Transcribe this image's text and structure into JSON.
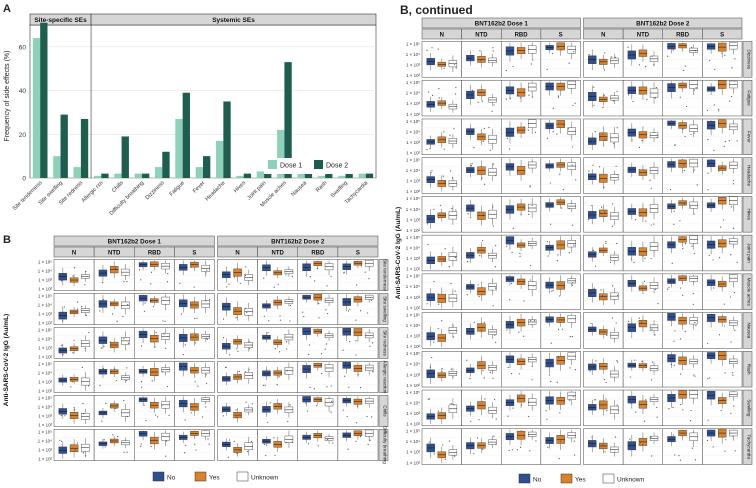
{
  "panels": {
    "a_letter": "A",
    "b_letter": "B",
    "b_continued_title": "B, continued"
  },
  "chart_data": [
    {
      "id": "A",
      "type": "bar",
      "ylabel": "Frequency of side effects (%)",
      "ylim": [
        0,
        75
      ],
      "yticks": [
        0,
        20,
        40,
        60
      ],
      "grid": true,
      "legend_position": "bottom-right",
      "facets": [
        "Site-specific SEs",
        "Systemic SEs"
      ],
      "categories": [
        "Site tenderness",
        "Site swelling",
        "Site redness",
        "Allergic rxn",
        "Chills",
        "Difficulty breathing",
        "Dizziness",
        "Fatigue",
        "Fever",
        "Headache",
        "Hives",
        "Joint pain",
        "Muscle aches",
        "Nausea",
        "Rash",
        "Swelling",
        "Tachycardia"
      ],
      "facet_of_category": [
        0,
        0,
        0,
        1,
        1,
        1,
        1,
        1,
        1,
        1,
        1,
        1,
        1,
        1,
        1,
        1,
        1
      ],
      "series": [
        {
          "name": "Dose 1",
          "color": "#8fd1b8",
          "values": [
            64,
            10,
            5,
            1,
            2,
            2,
            5,
            27,
            5,
            17,
            1,
            3,
            22,
            2,
            1,
            1,
            2
          ]
        },
        {
          "name": "Dose 2",
          "color": "#1f5e4e",
          "values": [
            71,
            29,
            27,
            2,
            19,
            2,
            12,
            39,
            10,
            35,
            2,
            6,
            53,
            6,
            4,
            4,
            2
          ]
        }
      ]
    },
    {
      "id": "B",
      "type": "box",
      "ylabel": "Anti-SARS-CoV-2 IgG (Au/mL)",
      "log_scale": true,
      "yticks": [
        "1 × 10²",
        "1 × 10³",
        "1 × 10⁴",
        "1 × 10⁵"
      ],
      "doses": [
        "BNT162b2 Dose 1",
        "BNT162b2 Dose 2"
      ],
      "antigens": [
        "N",
        "NTD",
        "RBD",
        "S"
      ],
      "rows": [
        "Site tenderness",
        "Site swelling",
        "Site redness",
        "Allergic reaction",
        "Chills",
        "Difficulty breathing"
      ],
      "legend": [
        {
          "name": "No",
          "color": "#2f4f8f"
        },
        {
          "name": "Yes",
          "color": "#d9822b"
        },
        {
          "name": "Unknown",
          "color": "#ffffff"
        }
      ]
    },
    {
      "id": "B-continued",
      "type": "box",
      "ylabel": "Anti-SARS-CoV-2 IgG (Au/mL)",
      "log_scale": true,
      "yticks": [
        "1 × 10²",
        "1 × 10³",
        "1 × 10⁴",
        "1 × 10⁵"
      ],
      "doses": [
        "BNT162b2 Dose 1",
        "BNT162b2 Dose 2"
      ],
      "antigens": [
        "N",
        "NTD",
        "RBD",
        "S"
      ],
      "rows": [
        "Dizziness",
        "Fatigue",
        "Fever",
        "Headache",
        "Hives",
        "Joint pain",
        "Muscle aches",
        "Nausea",
        "Rash",
        "Swelling",
        "Tachycardia"
      ],
      "legend": [
        {
          "name": "No",
          "color": "#2f4f8f"
        },
        {
          "name": "Yes",
          "color": "#d9822b"
        },
        {
          "name": "Unknown",
          "color": "#ffffff"
        }
      ]
    }
  ]
}
